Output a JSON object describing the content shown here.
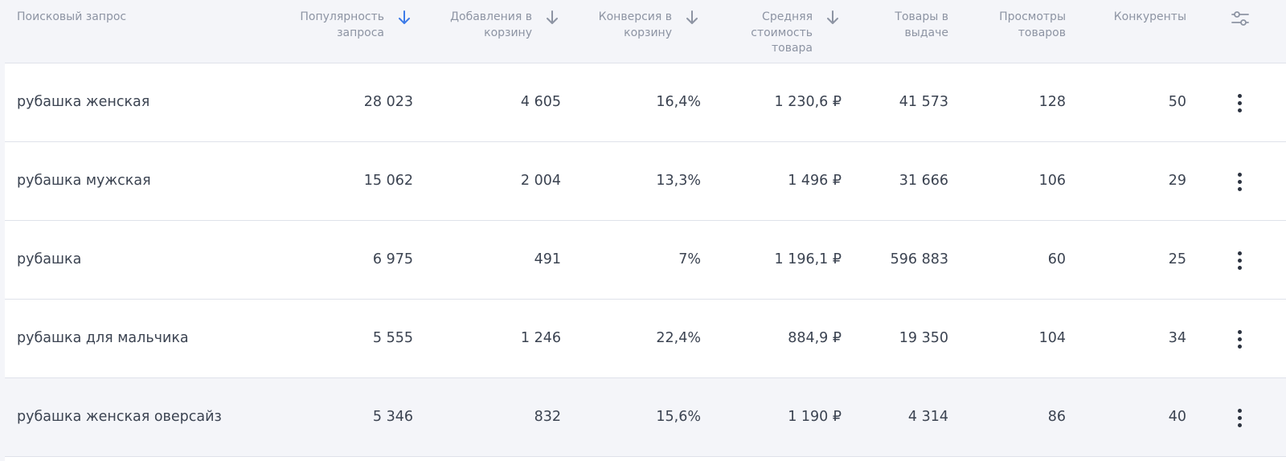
{
  "columns": [
    {
      "label_lines": [
        "Поисковый запрос"
      ]
    },
    {
      "label_lines": [
        "Популярность",
        "запроса"
      ],
      "sort": "active"
    },
    {
      "label_lines": [
        "Добавления в",
        "корзину"
      ],
      "sort": "inactive"
    },
    {
      "label_lines": [
        "Конверсия в",
        "корзину"
      ],
      "sort": "inactive"
    },
    {
      "label_lines": [
        "Средняя",
        "стоимость",
        "товара"
      ],
      "sort": "inactive"
    },
    {
      "label_lines": [
        "Товары в",
        "выдаче"
      ]
    },
    {
      "label_lines": [
        "Просмотры",
        "товаров"
      ]
    },
    {
      "label_lines": [
        "Конкуренты"
      ]
    }
  ],
  "icons": {
    "sort_active_color": "#3d7be8",
    "sort_inactive_color": "#8d94a3",
    "settings": "sliders-icon",
    "row_menu": "more-vertical-icon"
  },
  "rows": [
    {
      "query": "рубашка женская",
      "popularity": "28 023",
      "cart_adds": "4 605",
      "conversion": "16,4%",
      "avg_price": "1 230,6 ₽",
      "results": "41 573",
      "views": "128",
      "competitors": "50"
    },
    {
      "query": "рубашка мужская",
      "popularity": "15 062",
      "cart_adds": "2 004",
      "conversion": "13,3%",
      "avg_price": "1 496 ₽",
      "results": "31 666",
      "views": "106",
      "competitors": "29"
    },
    {
      "query": "рубашка",
      "popularity": "6 975",
      "cart_adds": "491",
      "conversion": "7%",
      "avg_price": "1 196,1 ₽",
      "results": "596 883",
      "views": "60",
      "competitors": "25"
    },
    {
      "query": "рубашка для мальчика",
      "popularity": "5 555",
      "cart_adds": "1 246",
      "conversion": "22,4%",
      "avg_price": "884,9 ₽",
      "results": "19 350",
      "views": "104",
      "competitors": "34"
    },
    {
      "query": "рубашка женская оверсайз",
      "popularity": "5 346",
      "cart_adds": "832",
      "conversion": "15,6%",
      "avg_price": "1 190 ₽",
      "results": "4 314",
      "views": "86",
      "competitors": "40",
      "hovered": true
    }
  ]
}
